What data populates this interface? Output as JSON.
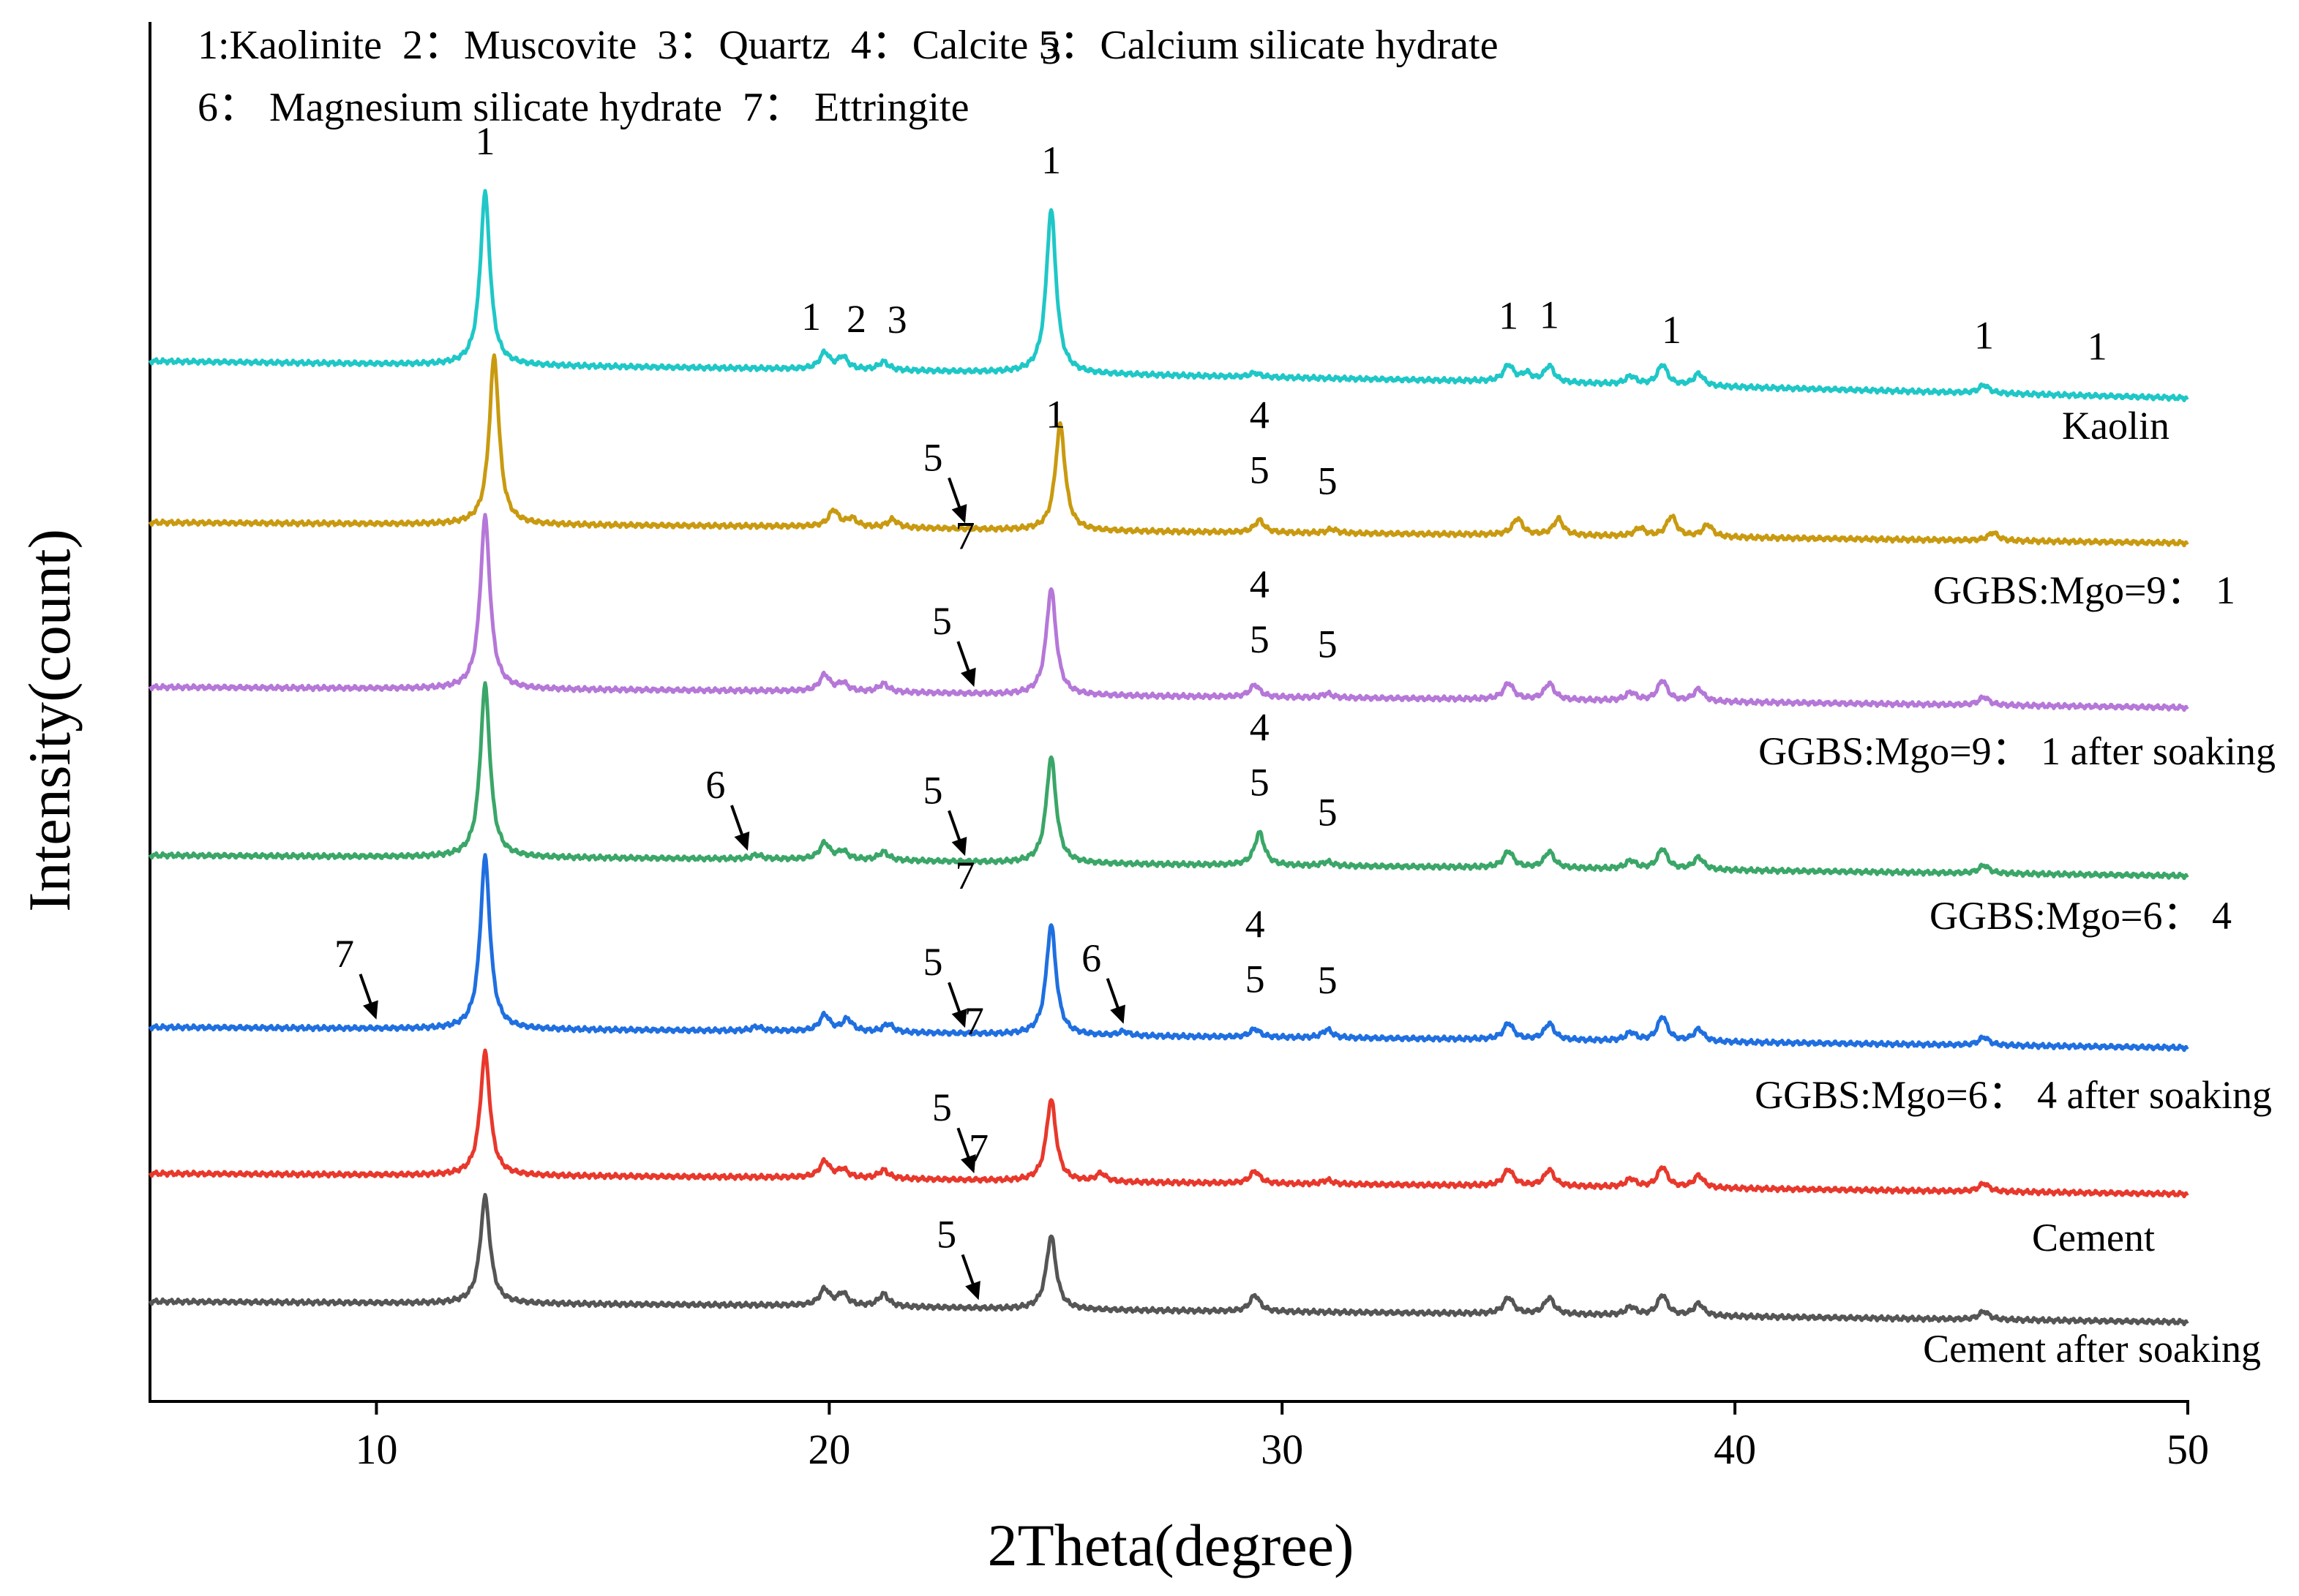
{
  "chart_data": {
    "type": "line",
    "title": "",
    "legend_lines": [
      "1:Kaolinite  2：Muscovite  3：Quartz  4：Calcite 5：Calcium silicate hydrate",
      "6： Magnesium silicate hydrate  7： Ettringite"
    ],
    "xlabel": "2Theta(degree)",
    "ylabel": "Intensity(count)",
    "xlim": [
      5,
      50
    ],
    "xticks": [
      "10",
      "20",
      "30",
      "40",
      "50"
    ],
    "grid": false,
    "series": [
      {
        "name": "Kaolin",
        "color": "#1fc7c7",
        "baseline": [
          [
            5,
            2
          ],
          [
            20,
            0
          ],
          [
            25,
            -1
          ],
          [
            35,
            -3
          ],
          [
            50,
            -7
          ]
        ],
        "peaks": [
          [
            12.4,
            42
          ],
          [
            19.9,
            4
          ],
          [
            20.3,
            3
          ],
          [
            21.2,
            2
          ],
          [
            24.9,
            40
          ],
          [
            29.4,
            1
          ],
          [
            35.0,
            4
          ],
          [
            35.4,
            2
          ],
          [
            35.9,
            4
          ],
          [
            37.7,
            2
          ],
          [
            38.4,
            5
          ],
          [
            39.2,
            3
          ],
          [
            45.5,
            2
          ]
        ],
        "markers": [
          {
            "text": "1",
            "x": 12.4,
            "row": 0
          },
          {
            "text": "1",
            "x": 19.6,
            "row": 0
          },
          {
            "text": "2",
            "x": 20.6,
            "row": 0
          },
          {
            "text": "3",
            "x": 21.5,
            "row": 0
          },
          {
            "text": "3",
            "x": 24.9,
            "row": 2
          },
          {
            "text": "1",
            "x": 24.9,
            "row": 0
          },
          {
            "text": "1",
            "x": 35.0,
            "row": 0
          },
          {
            "text": "1",
            "x": 35.9,
            "row": 0
          },
          {
            "text": "1",
            "x": 38.6,
            "row": 0
          },
          {
            "text": "1",
            "x": 45.5,
            "row": 0
          },
          {
            "text": "1",
            "x": 48.0,
            "row": 0
          }
        ],
        "arrows": []
      },
      {
        "name": "GGBS:Mgo=9： 1",
        "color": "#c99a10",
        "baseline": [
          [
            5,
            1
          ],
          [
            20,
            0
          ],
          [
            25,
            -1
          ],
          [
            35,
            -2
          ],
          [
            50,
            -4
          ]
        ],
        "peaks": [
          [
            12.6,
            41
          ],
          [
            20.1,
            4
          ],
          [
            20.5,
            2
          ],
          [
            21.4,
            2
          ],
          [
            25.1,
            26
          ],
          [
            29.5,
            3
          ],
          [
            31.1,
            1
          ],
          [
            35.2,
            4
          ],
          [
            36.1,
            4
          ],
          [
            37.9,
            2
          ],
          [
            38.6,
            5
          ],
          [
            39.4,
            3
          ],
          [
            45.7,
            2
          ]
        ],
        "markers": [
          {
            "text": "1",
            "x": 25.0,
            "row": 0
          },
          {
            "text": "4",
            "x": 29.5,
            "row": 1
          },
          {
            "text": "5",
            "x": 29.5,
            "row": 0
          },
          {
            "text": "5",
            "x": 31.0,
            "row": 0
          }
        ],
        "arrows": [
          {
            "text": "5",
            "x": 23.0
          }
        ]
      },
      {
        "name": "GGBS:Mgo=9： 1 after soaking",
        "color": "#b577d8",
        "baseline": [
          [
            5,
            1
          ],
          [
            20,
            0
          ],
          [
            25,
            -1
          ],
          [
            35,
            -2
          ],
          [
            50,
            -4
          ]
        ],
        "peaks": [
          [
            12.4,
            42
          ],
          [
            19.9,
            4
          ],
          [
            20.3,
            2
          ],
          [
            21.2,
            2
          ],
          [
            24.9,
            26
          ],
          [
            29.4,
            3
          ],
          [
            31.0,
            1
          ],
          [
            35.0,
            4
          ],
          [
            35.9,
            4
          ],
          [
            37.7,
            2
          ],
          [
            38.4,
            5
          ],
          [
            39.2,
            3
          ],
          [
            45.5,
            2
          ]
        ],
        "markers": [
          {
            "text": "7",
            "x": 23.0,
            "row": 2
          },
          {
            "text": "4",
            "x": 29.5,
            "row": 1
          },
          {
            "text": "5",
            "x": 29.5,
            "row": 0
          },
          {
            "text": "5",
            "x": 31.0,
            "row": 0
          }
        ],
        "arrows": [
          {
            "text": "5",
            "x": 23.2
          }
        ]
      },
      {
        "name": "GGBS:Mgo=6： 4",
        "color": "#3aa668",
        "baseline": [
          [
            5,
            1
          ],
          [
            20,
            0
          ],
          [
            25,
            -1
          ],
          [
            35,
            -2
          ],
          [
            50,
            -4
          ]
        ],
        "peaks": [
          [
            12.4,
            42
          ],
          [
            18.4,
            1
          ],
          [
            19.9,
            4
          ],
          [
            20.3,
            2
          ],
          [
            21.2,
            2
          ],
          [
            24.9,
            26
          ],
          [
            29.5,
            8
          ],
          [
            31.0,
            1
          ],
          [
            35.0,
            4
          ],
          [
            35.9,
            4
          ],
          [
            37.7,
            2
          ],
          [
            38.4,
            5
          ],
          [
            39.2,
            3
          ],
          [
            45.5,
            2
          ]
        ],
        "markers": [
          {
            "text": "4",
            "x": 29.5,
            "row": 1
          },
          {
            "text": "5",
            "x": 29.5,
            "row": 0
          },
          {
            "text": "5",
            "x": 31.0,
            "row": 0
          }
        ],
        "arrows": [
          {
            "text": "6",
            "x": 18.2
          },
          {
            "text": "5",
            "x": 23.0
          }
        ]
      },
      {
        "name": "GGBS:Mgo=6： 4 after soaking",
        "color": "#1f6fe0",
        "baseline": [
          [
            5,
            1
          ],
          [
            20,
            0
          ],
          [
            25,
            -1
          ],
          [
            35,
            -2
          ],
          [
            50,
            -4
          ]
        ],
        "peaks": [
          [
            12.4,
            42
          ],
          [
            18.4,
            1
          ],
          [
            19.9,
            4
          ],
          [
            20.4,
            3
          ],
          [
            21.3,
            2
          ],
          [
            24.9,
            27
          ],
          [
            26.5,
            1
          ],
          [
            29.4,
            2
          ],
          [
            31.0,
            2
          ],
          [
            35.0,
            4
          ],
          [
            35.9,
            4
          ],
          [
            37.7,
            2
          ],
          [
            38.4,
            6
          ],
          [
            39.2,
            3
          ],
          [
            45.5,
            2
          ]
        ],
        "markers": [
          {
            "text": "7",
            "x": 23.0,
            "row": 2
          },
          {
            "text": "4",
            "x": 29.4,
            "row": 1
          },
          {
            "text": "5",
            "x": 29.4,
            "row": 0
          },
          {
            "text": "5",
            "x": 31.0,
            "row": 0
          }
        ],
        "arrows": [
          {
            "text": "7",
            "x": 10.0
          },
          {
            "text": "5",
            "x": 23.0
          },
          {
            "text": "6",
            "x": 26.5
          }
        ]
      },
      {
        "name": "Cement",
        "color": "#e8382c",
        "baseline": [
          [
            5,
            1
          ],
          [
            20,
            0
          ],
          [
            25,
            -1
          ],
          [
            35,
            -2
          ],
          [
            50,
            -4
          ]
        ],
        "peaks": [
          [
            12.4,
            30
          ],
          [
            19.9,
            4
          ],
          [
            20.3,
            2
          ],
          [
            21.2,
            2
          ],
          [
            24.9,
            20
          ],
          [
            26.0,
            2
          ],
          [
            29.4,
            3
          ],
          [
            31.0,
            1
          ],
          [
            35.0,
            4
          ],
          [
            35.9,
            4
          ],
          [
            37.7,
            2
          ],
          [
            38.4,
            5
          ],
          [
            39.2,
            3
          ],
          [
            45.5,
            2
          ]
        ],
        "markers": [
          {
            "text": "7",
            "x": 23.2,
            "row": 2
          }
        ],
        "arrows": [
          {
            "text": "5",
            "x": 23.2
          }
        ]
      },
      {
        "name": "Cement after soaking",
        "color": "#555555",
        "baseline": [
          [
            5,
            1
          ],
          [
            20,
            0
          ],
          [
            25,
            -1
          ],
          [
            35,
            -2
          ],
          [
            50,
            -4
          ]
        ],
        "peaks": [
          [
            12.4,
            26
          ],
          [
            19.9,
            4
          ],
          [
            20.3,
            3
          ],
          [
            21.2,
            3
          ],
          [
            24.9,
            18
          ],
          [
            29.4,
            4
          ],
          [
            35.0,
            4
          ],
          [
            35.9,
            4
          ],
          [
            37.7,
            2
          ],
          [
            38.4,
            5
          ],
          [
            39.2,
            3
          ],
          [
            45.5,
            2
          ]
        ],
        "markers": [
          {
            "text": "7",
            "x": 23.3,
            "row": 2
          }
        ],
        "arrows": [
          {
            "text": "5",
            "x": 23.3
          }
        ]
      }
    ]
  }
}
